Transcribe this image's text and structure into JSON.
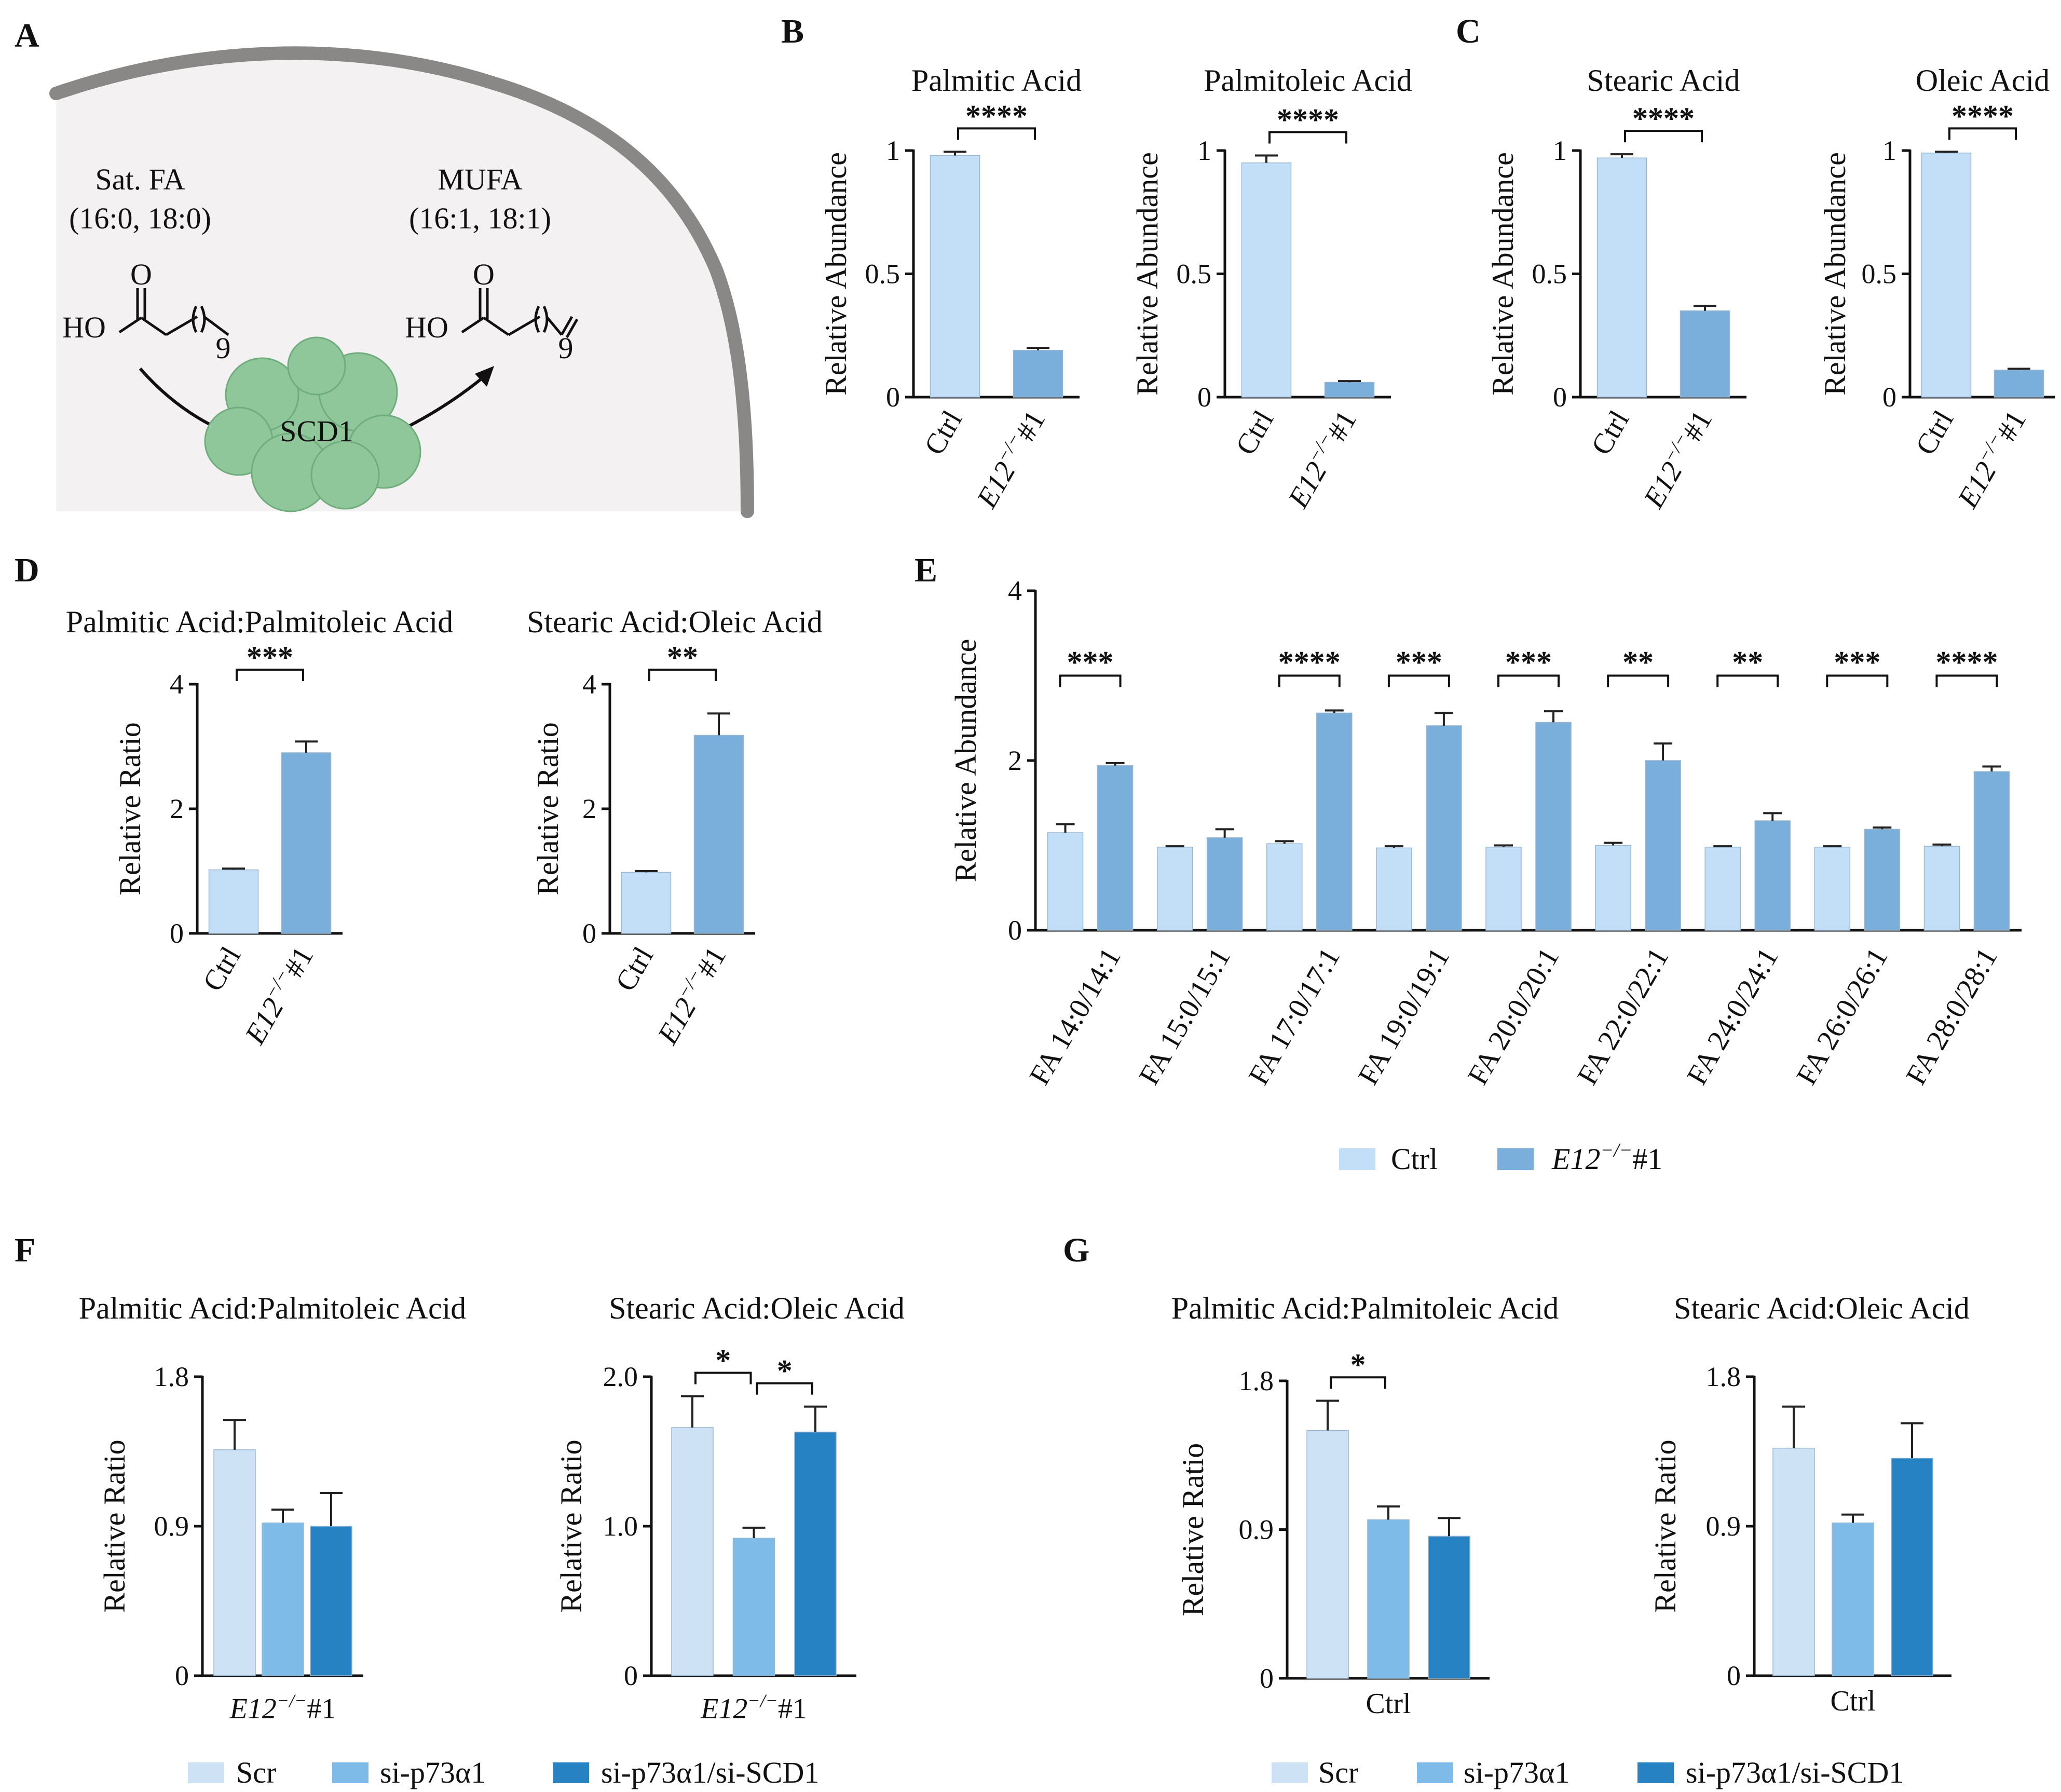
{
  "figure": {
    "panel_letters": {
      "A": "A",
      "B": "B",
      "C": "C",
      "D": "D",
      "E": "E",
      "F": "F",
      "G": "G"
    },
    "colors": {
      "ctrl": "#c3def7",
      "e12": "#7aaedb",
      "scr": "#cde2f5",
      "si_p73a1": "#7fbbe8",
      "si_p73a1_scd1": "#2782c4",
      "membrane": "#8a8787",
      "cell": "#f3f1f2",
      "enzyme": "#8fc79a"
    }
  },
  "schematic": {
    "left_label_1": "Sat. FA",
    "left_label_2": "(16:0, 18:0)",
    "right_label_1": "MUFA",
    "right_label_2": "(16:1, 18:1)",
    "enzyme": "SCD1",
    "mol_O": "O",
    "mol_HO": "HO",
    "mol_n": "9"
  },
  "legends": {
    "E": {
      "ctrl": "Ctrl",
      "e12_prefix": "E12",
      "e12_sup": "−/−",
      "e12_suffix": "#1"
    },
    "F": {
      "scr": "Scr",
      "si1": "si-p73α1",
      "si2": "si-p73α1/si-SCD1"
    },
    "G": {
      "scr": "Scr",
      "si1": "si-p73α1",
      "si2": "si-p73α1/si-SCD1"
    }
  },
  "chart_data": [
    {
      "id": "B1",
      "panel": "B",
      "type": "bar",
      "title": "Palmitic Acid",
      "ylabel": "Relative Abundance",
      "ylim": [
        0,
        1
      ],
      "yticks": [
        0,
        0.5,
        1
      ],
      "ytick_labels": [
        "0",
        "0.5",
        "1"
      ],
      "categories": [
        "Ctrl",
        "E12−/−#1"
      ],
      "values": [
        0.98,
        0.19
      ],
      "errors": [
        0.015,
        0.01
      ],
      "significance": [
        {
          "from": 0,
          "to": 1,
          "label": "****"
        }
      ]
    },
    {
      "id": "B2",
      "panel": "B",
      "type": "bar",
      "title": "Palmitoleic Acid",
      "ylabel": "Relative Abundance",
      "ylim": [
        0,
        1
      ],
      "yticks": [
        0,
        0.5,
        1
      ],
      "ytick_labels": [
        "0",
        "0.5",
        "1"
      ],
      "categories": [
        "Ctrl",
        "E12−/−#1"
      ],
      "values": [
        0.95,
        0.06
      ],
      "errors": [
        0.03,
        0.005
      ],
      "significance": [
        {
          "from": 0,
          "to": 1,
          "label": "****"
        }
      ]
    },
    {
      "id": "C1",
      "panel": "C",
      "type": "bar",
      "title": "Stearic Acid",
      "ylabel": "Relative Abundance",
      "ylim": [
        0,
        1
      ],
      "yticks": [
        0,
        0.5,
        1
      ],
      "ytick_labels": [
        "0",
        "0.5",
        "1"
      ],
      "categories": [
        "Ctrl",
        "E12−/−#1"
      ],
      "values": [
        0.97,
        0.35
      ],
      "errors": [
        0.015,
        0.02
      ],
      "significance": [
        {
          "from": 0,
          "to": 1,
          "label": "****"
        }
      ]
    },
    {
      "id": "C2",
      "panel": "C",
      "type": "bar",
      "title": "Oleic Acid",
      "ylabel": "Relative Abundance",
      "ylim": [
        0,
        1
      ],
      "yticks": [
        0,
        0.5,
        1
      ],
      "ytick_labels": [
        "0",
        "0.5",
        "1"
      ],
      "categories": [
        "Ctrl",
        "E12−/−#1"
      ],
      "values": [
        0.99,
        0.11
      ],
      "errors": [
        0.005,
        0.005
      ],
      "significance": [
        {
          "from": 0,
          "to": 1,
          "label": "****"
        }
      ]
    },
    {
      "id": "D1",
      "panel": "D",
      "type": "bar",
      "title": "Palmitic Acid:Palmitoleic Acid",
      "ylabel": "Relative Ratio",
      "ylim": [
        0,
        4
      ],
      "yticks": [
        0,
        2,
        4
      ],
      "ytick_labels": [
        "0",
        "2",
        "4"
      ],
      "categories": [
        "Ctrl",
        "E12−/−#1"
      ],
      "values": [
        1.02,
        2.9
      ],
      "errors": [
        0.02,
        0.18
      ],
      "significance": [
        {
          "from": 0,
          "to": 1,
          "label": "***"
        }
      ]
    },
    {
      "id": "D2",
      "panel": "D",
      "type": "bar",
      "title": "Stearic Acid:Oleic Acid",
      "ylabel": "Relative Ratio",
      "ylim": [
        0,
        4
      ],
      "yticks": [
        0,
        2,
        4
      ],
      "ytick_labels": [
        "0",
        "2",
        "4"
      ],
      "categories": [
        "Ctrl",
        "E12−/−#1"
      ],
      "values": [
        0.98,
        3.18
      ],
      "errors": [
        0.02,
        0.35
      ],
      "significance": [
        {
          "from": 0,
          "to": 1,
          "label": "**"
        }
      ]
    },
    {
      "id": "E",
      "panel": "E",
      "type": "bar",
      "title": "",
      "ylabel": "Relative Abundance",
      "ylim": [
        0,
        4
      ],
      "yticks": [
        0,
        2,
        4
      ],
      "ytick_labels": [
        "0",
        "2",
        "4"
      ],
      "categories": [
        "FA 14:0/14:1",
        "FA 15:0/15:1",
        "FA 17:0/17:1",
        "FA 19:0/19:1",
        "FA 20:0/20:1",
        "FA 22:0/22:1",
        "FA 24:0/24:1",
        "FA 26:0/26:1",
        "FA 28:0/28:1"
      ],
      "series": [
        {
          "name": "Ctrl",
          "values": [
            1.15,
            0.98,
            1.02,
            0.97,
            0.98,
            1.0,
            0.98,
            0.98,
            0.99
          ],
          "errors": [
            0.1,
            0.01,
            0.03,
            0.02,
            0.02,
            0.03,
            0.01,
            0.01,
            0.02
          ]
        },
        {
          "name": "E12−/−#1",
          "values": [
            1.94,
            1.09,
            2.56,
            2.41,
            2.45,
            2.0,
            1.29,
            1.19,
            1.87
          ],
          "errors": [
            0.03,
            0.1,
            0.03,
            0.15,
            0.13,
            0.2,
            0.09,
            0.02,
            0.06
          ]
        }
      ],
      "significance": [
        "***",
        "",
        "****",
        "***",
        "***",
        "**",
        "**",
        "***",
        "****"
      ]
    },
    {
      "id": "F1",
      "panel": "F",
      "type": "bar",
      "title": "Palmitic Acid:Palmitoleic Acid",
      "ylabel": "Relative Ratio",
      "ylim": [
        0,
        1.8
      ],
      "yticks": [
        0,
        0.9,
        1.8
      ],
      "ytick_labels": [
        "0",
        "0.9",
        "1.8"
      ],
      "group_label": {
        "prefix": "E12",
        "sup": "−/−",
        "suffix": "#1"
      },
      "categories": [
        "Scr",
        "si-p73α1",
        "si-p73α1/si-SCD1"
      ],
      "values": [
        1.36,
        0.92,
        0.9
      ],
      "errors": [
        0.18,
        0.08,
        0.2
      ],
      "significance": []
    },
    {
      "id": "F2",
      "panel": "F",
      "type": "bar",
      "title": "Stearic Acid:Oleic Acid",
      "ylabel": "Relative Ratio",
      "ylim": [
        0,
        2.0
      ],
      "yticks": [
        0,
        1.0,
        2.0
      ],
      "ytick_labels": [
        "0",
        "1.0",
        "2.0"
      ],
      "group_label": {
        "prefix": "E12",
        "sup": "−/−",
        "suffix": "#1"
      },
      "categories": [
        "Scr",
        "si-p73α1",
        "si-p73α1/si-SCD1"
      ],
      "values": [
        1.66,
        0.92,
        1.63
      ],
      "errors": [
        0.21,
        0.07,
        0.17
      ],
      "significance": [
        {
          "from": 0,
          "to": 1,
          "label": "*"
        },
        {
          "from": 1,
          "to": 2,
          "label": "*"
        }
      ]
    },
    {
      "id": "G1",
      "panel": "G",
      "type": "bar",
      "title": "Palmitic Acid:Palmitoleic Acid",
      "ylabel": "Relative Ratio",
      "ylim": [
        0,
        1.8
      ],
      "yticks": [
        0,
        0.9,
        1.8
      ],
      "ytick_labels": [
        "0",
        "0.9",
        "1.8"
      ],
      "group_label": {
        "prefix": "",
        "sup": "",
        "suffix": "Ctrl"
      },
      "categories": [
        "Scr",
        "si-p73α1",
        "si-p73α1/si-SCD1"
      ],
      "values": [
        1.5,
        0.96,
        0.86
      ],
      "errors": [
        0.18,
        0.08,
        0.11
      ],
      "significance": [
        {
          "from": 0,
          "to": 1,
          "label": "*"
        }
      ]
    },
    {
      "id": "G2",
      "panel": "G",
      "type": "bar",
      "title": "Stearic Acid:Oleic Acid",
      "ylabel": "Relative Ratio",
      "ylim": [
        0,
        1.8
      ],
      "yticks": [
        0,
        0.9,
        1.8
      ],
      "ytick_labels": [
        "0",
        "0.9",
        "1.8"
      ],
      "group_label": {
        "prefix": "",
        "sup": "",
        "suffix": "Ctrl"
      },
      "categories": [
        "Scr",
        "si-p73α1",
        "si-p73α1/si-SCD1"
      ],
      "values": [
        1.37,
        0.92,
        1.31
      ],
      "errors": [
        0.25,
        0.05,
        0.21
      ],
      "significance": []
    }
  ]
}
